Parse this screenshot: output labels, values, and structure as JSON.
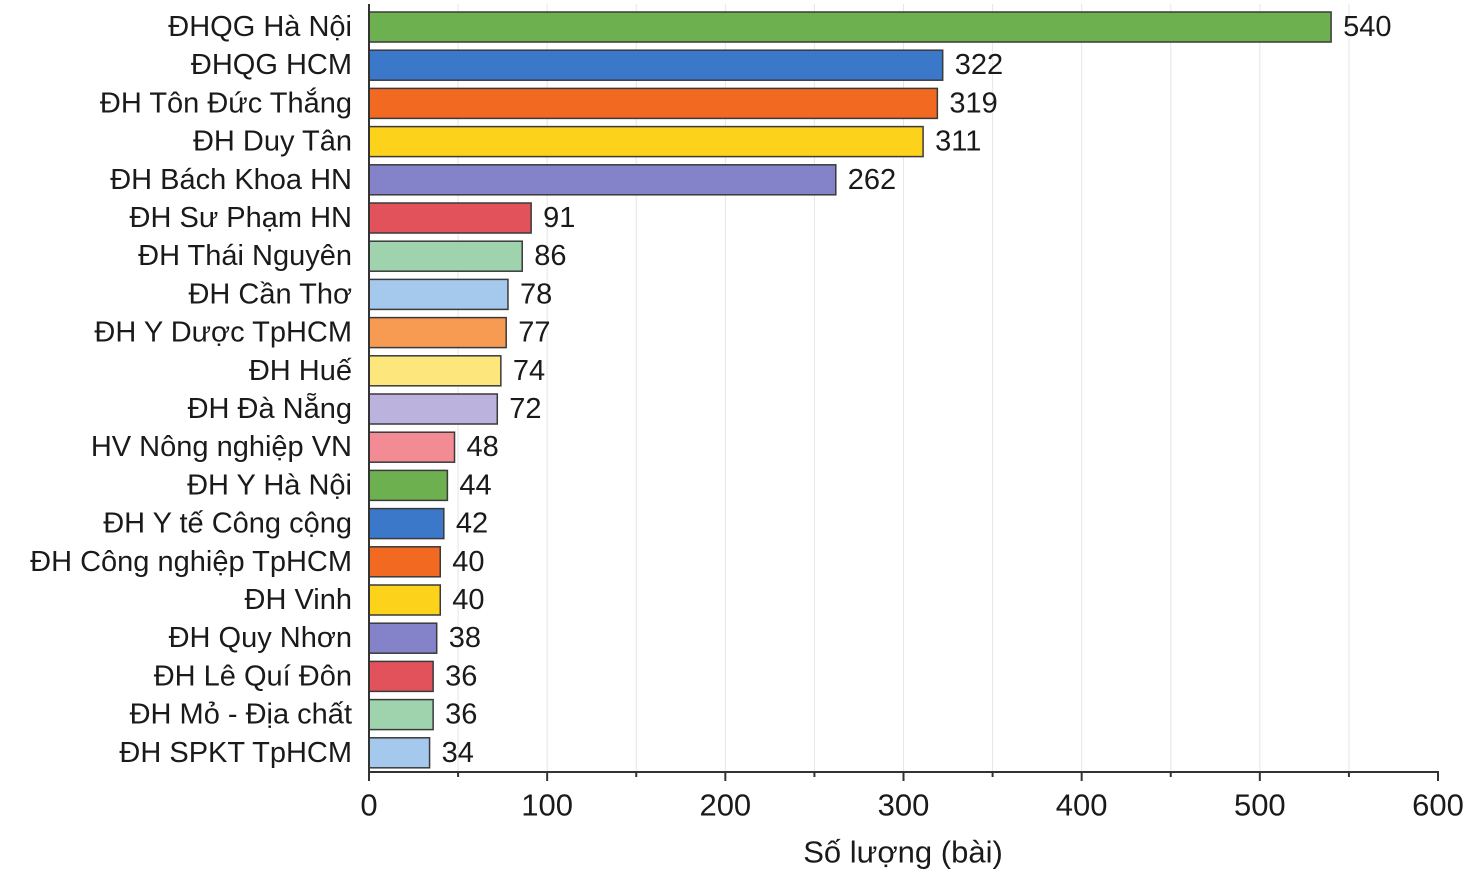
{
  "chart_data": {
    "type": "bar",
    "orientation": "horizontal",
    "categories": [
      "ĐHQG Hà Nội",
      "ĐHQG HCM",
      "ĐH Tôn Đức Thắng",
      "ĐH Duy Tân",
      "ĐH Bách Khoa HN",
      "ĐH Sư Phạm HN",
      "ĐH Thái Nguyên",
      "ĐH Cần Thơ",
      "ĐH Y Dược TpHCM",
      "ĐH Huế",
      "ĐH Đà Nẵng",
      "HV Nông nghiệp VN",
      "ĐH Y Hà Nội",
      "ĐH Y tế Công cộng",
      "ĐH Công nghiệp TpHCM",
      "ĐH Vinh",
      "ĐH Quy Nhơn",
      "ĐH Lê Quí Đôn",
      "ĐH Mỏ - Địa chất",
      "ĐH SPKT TpHCM"
    ],
    "values": [
      540,
      322,
      319,
      311,
      262,
      91,
      86,
      78,
      77,
      74,
      72,
      48,
      44,
      42,
      40,
      40,
      38,
      36,
      36,
      34
    ],
    "colors": [
      "#6db04f",
      "#3b78c9",
      "#f26a22",
      "#fdd21b",
      "#8482c8",
      "#e2525b",
      "#9fd3ae",
      "#a5c9ec",
      "#f89b52",
      "#fde77c",
      "#bbb3de",
      "#f28b93",
      "#6db04f",
      "#3b78c9",
      "#f26a22",
      "#fdd21b",
      "#8482c8",
      "#e2525b",
      "#9fd3ae",
      "#a5c9ec"
    ],
    "bar_edge_color": "#3a3a3a",
    "xlabel": "Số lượng (bài)",
    "xlim": [
      0,
      600
    ],
    "xticks": [
      0,
      100,
      200,
      300,
      400,
      500,
      600
    ],
    "grid": true
  }
}
